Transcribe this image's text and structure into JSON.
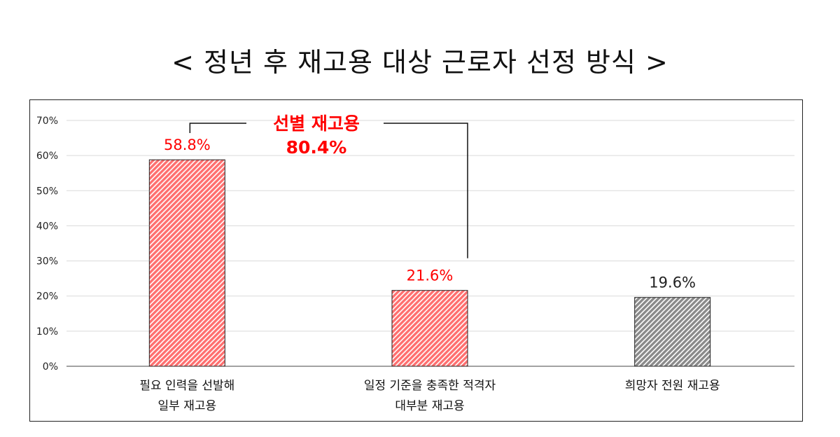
{
  "chart_data": {
    "type": "bar",
    "title": "< 정년 후 재고용 대상 근로자 선정 방식 >",
    "categories": [
      [
        "필요 인력을 선발해",
        "일부 재고용"
      ],
      [
        "일정 기준을 충족한 적격자",
        "대부분 재고용"
      ],
      [
        "희망자 전원 재고용"
      ]
    ],
    "values": [
      58.8,
      21.6,
      19.6
    ],
    "value_labels": [
      "58.8%",
      "21.6%",
      "19.6%"
    ],
    "bar_colors": [
      "#ff6f6f",
      "#ff6f6f",
      "#8a8a8a"
    ],
    "label_colors": [
      "#ff0000",
      "#ff0000",
      "#222222"
    ],
    "yticks": [
      "0%",
      "10%",
      "20%",
      "30%",
      "40%",
      "50%",
      "60%",
      "70%"
    ],
    "ylim": [
      0,
      70
    ],
    "grid": true,
    "xlabel": "",
    "ylabel": "",
    "annotation": {
      "line1": "선별 재고용",
      "line2": "80.4%",
      "color": "#ff0000"
    }
  }
}
